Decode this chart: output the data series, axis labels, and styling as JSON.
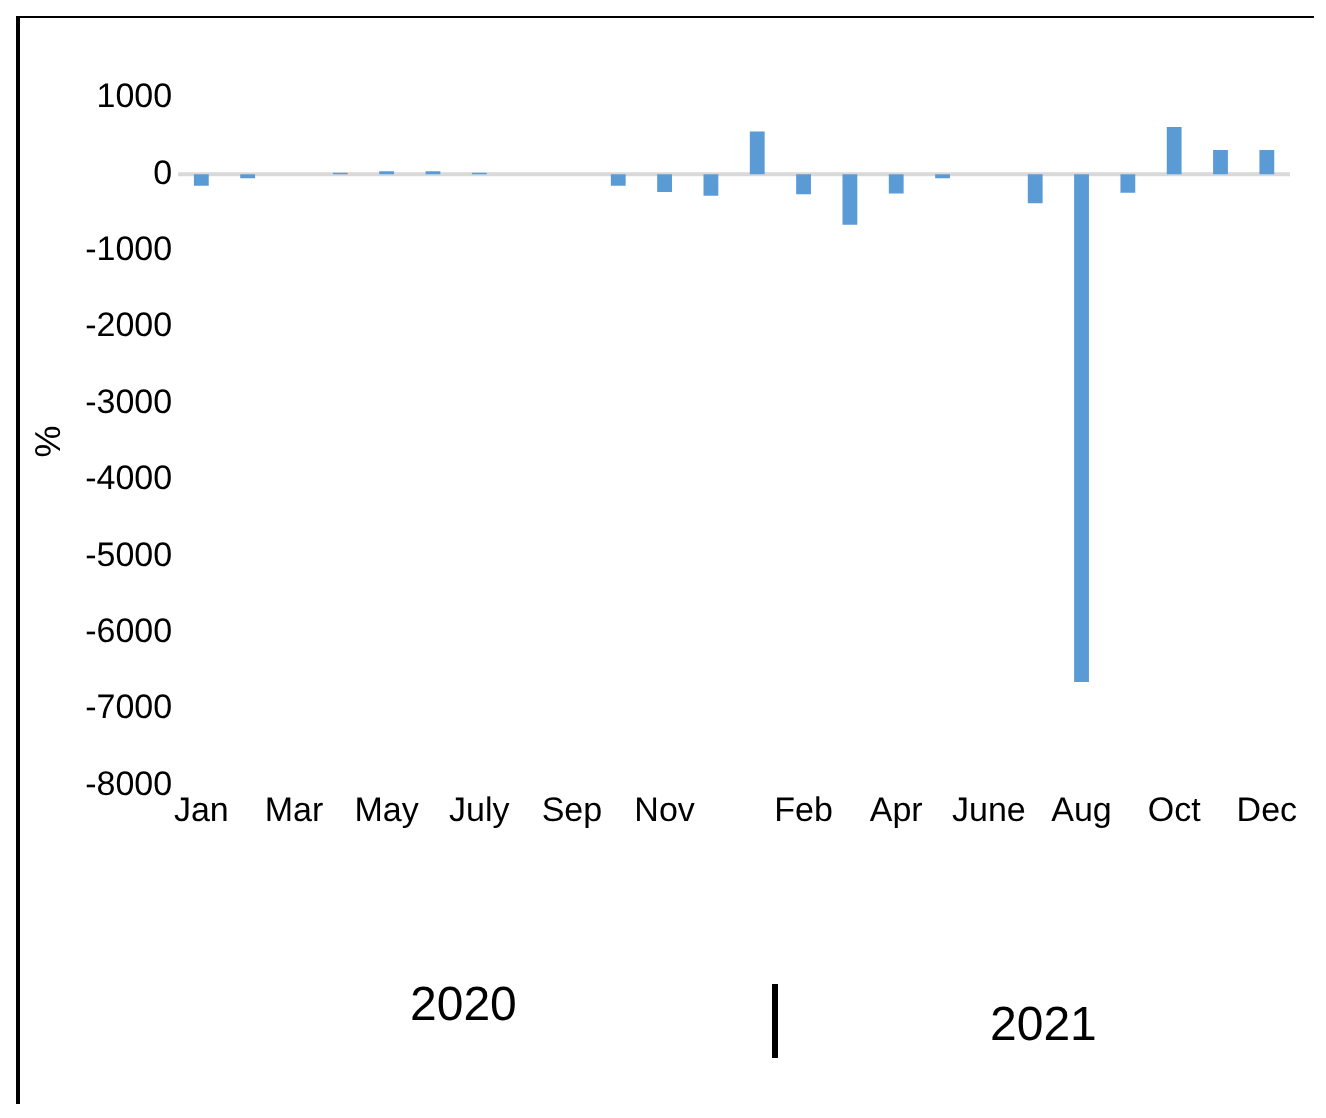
{
  "chart_data": {
    "type": "bar",
    "ylabel": "%",
    "categories": [
      "Jan",
      null,
      "Mar",
      null,
      "May",
      null,
      "July",
      null,
      "Sep",
      null,
      "Nov",
      null,
      null,
      "Feb",
      null,
      "Apr",
      null,
      "June",
      null,
      "Aug",
      null,
      "Oct",
      null,
      "Dec"
    ],
    "values": [
      -150,
      -50,
      0,
      20,
      40,
      40,
      20,
      0,
      0,
      -150,
      -230,
      -280,
      560,
      -260,
      -660,
      -250,
      -50,
      0,
      -380,
      -6650,
      -240,
      620,
      320,
      320
    ],
    "color": "#5b9bd5",
    "ylim": [
      -8000,
      1000
    ],
    "yticks": [
      -8000,
      -7000,
      -6000,
      -5000,
      -4000,
      -3000,
      -2000,
      -1000,
      0,
      1000
    ],
    "grid": false,
    "ref_lines": [
      {
        "axis": "y",
        "value": 0,
        "color": "#d9d9d9"
      }
    ],
    "legend": false,
    "annotations": [
      "2020",
      "2021"
    ]
  }
}
